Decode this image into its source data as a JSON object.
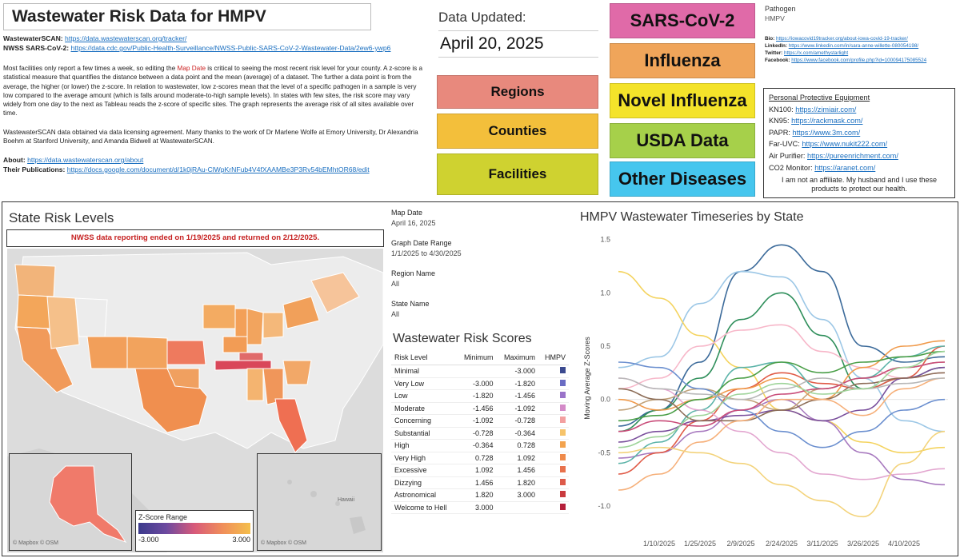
{
  "header": {
    "title": "Wastewater Risk Data for  HMPV",
    "links": [
      {
        "label": "WastewaterSCAN:",
        "url": "https://data.wastewaterscan.org/tracker/"
      },
      {
        "label": "NWSS SARS-CoV-2:",
        "url": "https://data.cdc.gov/Public-Health-Surveillance/NWSS-Public-SARS-CoV-2-Wastewater-Data/2ew6-ywp6"
      }
    ],
    "para1_a": "Most facilities only report a few times a week, so editing the ",
    "para1_highlight": "Map Date",
    "para1_b": " is critical to seeing the most recent risk level for your county. A z-score is a statistical measure that quantifies the distance between a data point and the mean (average) of a dataset. The further a data point is from the average, the higher (or lower) the z-score. In relation to wastewater, low z-scores mean that the level of a specific pathogen in a sample is very low compared to the average amount (which is falls around moderate-to-high sample levels). In states with few sites, the risk score may vary widely from one day to the next as Tableau reads the z-score of specific sites. The graph represents the average risk of all sites available over time.",
    "para2": "WastewaterSCAN data obtained via data licensing agreement. Many thanks to the work of Dr Marlene Wolfe at Emory University, Dr Alexandria Boehm at Stanford University, and Amanda Bidwell at WastewaterSCAN.",
    "about_label": "About:",
    "about_url": "https://data.wastewaterscan.org/about",
    "pubs_label": "Their Publications:",
    "pubs_url": "https://docs.google.com/document/d/1k0jRAu-ClWpKrNFub4V4fXAAMBe3P3Rv54bEMhtOR68/edit"
  },
  "updated": {
    "label": "Data Updated:",
    "date": "April 20, 2025"
  },
  "nav_left": [
    {
      "label": "Regions",
      "color": "#e8897d"
    },
    {
      "label": "Counties",
      "color": "#f3bf3b"
    },
    {
      "label": "Facilities",
      "color": "#cfd230"
    }
  ],
  "nav_right": [
    {
      "label": "SARS-CoV-2",
      "color": "#e06aa8"
    },
    {
      "label": "Influenza",
      "color": "#f0a55a"
    },
    {
      "label": "Novel Influenza",
      "color": "#f4e32a"
    },
    {
      "label": "USDA Data",
      "color": "#a6d04a"
    },
    {
      "label": "Other Diseases",
      "color": "#46c6ee"
    }
  ],
  "pathogen": {
    "label": "Pathogen",
    "value": "HMPV"
  },
  "social": [
    {
      "label": "Bio:",
      "url": "https://iowacovid19tracker.org/about-iowa-covid-19-tracker/"
    },
    {
      "label": "LinkedIn:",
      "url": "https://www.linkedin.com/in/sara-anne-willette-080054198/"
    },
    {
      "label": "Twitter:",
      "url": "https://x.com/amethystarlight"
    },
    {
      "label": "Facebook:",
      "url": "https://www.facebook.com/profile.php?id=100094175085524"
    }
  ],
  "ppe": {
    "title": "Personal Protective Equipment",
    "items": [
      {
        "label": "KN100:",
        "url": "https://zimiair.com/"
      },
      {
        "label": "KN95:",
        "url": "https://rackmask.com/"
      },
      {
        "label": "PAPR:",
        "url": "https://www.3m.com/"
      },
      {
        "label": "Far-UVC:",
        "url": "https://www.nukit222.com/"
      },
      {
        "label": "Air Purifier:",
        "url": "https://pureenrichment.com/"
      },
      {
        "label": "CO2 Monitor:",
        "url": "https://aranet.com/"
      }
    ],
    "note": "I am not an affiliate. My husband and I use these products to protect our health."
  },
  "map": {
    "title": "State Risk Levels",
    "note": "NWSS data reporting ended on 1/19/2025 and returned on 2/12/2025.",
    "attribution": "© Mapbox © OSM",
    "hawaii": "Hawaii",
    "legend_title": "Z-Score Range",
    "legend_min": "-3.000",
    "legend_max": "3.000"
  },
  "filters": [
    {
      "label": "Map Date",
      "value": "April 16, 2025"
    },
    {
      "label": "Graph Date Range",
      "value": "1/1/2025 to 4/30/2025"
    },
    {
      "label": "Region Name",
      "value": "All"
    },
    {
      "label": "State Name",
      "value": "All"
    }
  ],
  "risk": {
    "title": "Wastewater Risk Scores",
    "headers": [
      "Risk Level",
      "Minimum",
      "Maximum",
      "HMPV"
    ],
    "rows": [
      {
        "level": "Minimal",
        "min": "",
        "max": "-3.000",
        "color": "#3b4a8f"
      },
      {
        "level": "Very Low",
        "min": "-3.000",
        "max": "-1.820",
        "color": "#6a6cc3"
      },
      {
        "level": "Low",
        "min": "-1.820",
        "max": "-1.456",
        "color": "#9a73c9"
      },
      {
        "level": "Moderate",
        "min": "-1.456",
        "max": "-1.092",
        "color": "#d48ac8"
      },
      {
        "level": "Concerning",
        "min": "-1.092",
        "max": "-0.728",
        "color": "#f3a0a0"
      },
      {
        "level": "Substantial",
        "min": "-0.728",
        "max": "-0.364",
        "color": "#f6c36a"
      },
      {
        "level": "High",
        "min": "-0.364",
        "max": "0.728",
        "color": "#f3a34e"
      },
      {
        "level": "Very High",
        "min": "0.728",
        "max": "1.092",
        "color": "#ef8a4a"
      },
      {
        "level": "Excessive",
        "min": "1.092",
        "max": "1.456",
        "color": "#e8714c"
      },
      {
        "level": "Dizzying",
        "min": "1.456",
        "max": "1.820",
        "color": "#dd5a4a"
      },
      {
        "level": "Astronomical",
        "min": "1.820",
        "max": "3.000",
        "color": "#c93a3e"
      },
      {
        "level": "Welcome to Hell",
        "min": "3.000",
        "max": "",
        "color": "#b51f3a"
      }
    ]
  },
  "chart_data": {
    "type": "line",
    "title": "HMPV Wastewater Timeseries by State",
    "ylabel": "Moving Average Z-Scores",
    "xlabel": "",
    "ylim": [
      -1.15,
      1.55
    ],
    "yticks": [
      "1.5",
      "1.0",
      "0.5",
      "0.0",
      "-0.5",
      "-1.0"
    ],
    "xticks": [
      "1/10/2025",
      "1/25/2025",
      "2/9/2025",
      "2/24/2025",
      "3/11/2025",
      "3/26/2025",
      "4/10/2025"
    ],
    "grid": false,
    "legend": "none",
    "x": [
      "1/1/2025",
      "1/10/2025",
      "1/25/2025",
      "2/9/2025",
      "2/24/2025",
      "3/11/2025",
      "3/26/2025",
      "4/10/2025",
      "4/20/2025"
    ],
    "series": [
      {
        "color": "#3b6a9a",
        "values": [
          -0.25,
          -0.1,
          0.35,
          1.2,
          1.45,
          1.2,
          0.5,
          0.35,
          0.4
        ]
      },
      {
        "color": "#9cc7e6",
        "values": [
          0.3,
          0.4,
          0.9,
          1.2,
          1.15,
          0.75,
          0.2,
          -0.2,
          -0.3
        ]
      },
      {
        "color": "#f4d35e",
        "values": [
          1.2,
          0.95,
          0.6,
          0.3,
          -0.1,
          -0.2,
          -0.4,
          -0.5,
          -0.45
        ]
      },
      {
        "color": "#2f8f5b",
        "values": [
          -0.3,
          -0.1,
          0.2,
          0.75,
          1.0,
          0.6,
          0.1,
          0.2,
          0.3
        ]
      },
      {
        "color": "#f7b7c9",
        "values": [
          0.1,
          0.2,
          0.5,
          0.65,
          0.7,
          0.45,
          0.3,
          0.2,
          0.25
        ]
      },
      {
        "color": "#a87abf",
        "values": [
          -0.55,
          -0.5,
          -0.3,
          -0.1,
          0.0,
          -0.2,
          -0.5,
          -0.75,
          -0.8
        ]
      },
      {
        "color": "#e05b47",
        "values": [
          -0.7,
          -0.5,
          -0.2,
          0.1,
          0.25,
          0.15,
          0.1,
          0.2,
          0.5
        ]
      },
      {
        "color": "#5bb3a8",
        "values": [
          -0.6,
          -0.4,
          -0.1,
          0.3,
          0.35,
          0.1,
          0.2,
          0.4,
          0.5
        ]
      },
      {
        "color": "#f09a4b",
        "values": [
          0.0,
          -0.1,
          0.0,
          0.1,
          0.2,
          0.0,
          0.3,
          0.5,
          0.55
        ]
      },
      {
        "color": "#7a4f9c",
        "values": [
          -0.4,
          -0.3,
          -0.2,
          -0.15,
          -0.1,
          -0.2,
          -0.1,
          0.2,
          0.3
        ]
      },
      {
        "color": "#c2a37a",
        "values": [
          -0.1,
          0.0,
          0.1,
          0.0,
          -0.1,
          0.1,
          0.2,
          0.3,
          0.35
        ]
      },
      {
        "color": "#e3a7d0",
        "values": [
          0.2,
          0.1,
          -0.1,
          -0.3,
          -0.5,
          -0.7,
          -0.75,
          -0.7,
          -0.65
        ]
      },
      {
        "color": "#4a9e47",
        "values": [
          -0.2,
          -0.15,
          0.0,
          0.2,
          0.35,
          0.25,
          0.35,
          0.4,
          0.45
        ]
      },
      {
        "color": "#8d6e58",
        "values": [
          0.1,
          0.0,
          -0.2,
          -0.2,
          -0.1,
          0.0,
          0.15,
          0.2,
          0.25
        ]
      },
      {
        "color": "#f6b07a",
        "values": [
          -0.85,
          -0.7,
          -0.4,
          -0.2,
          0.0,
          0.0,
          -0.15,
          0.1,
          0.2
        ]
      },
      {
        "color": "#6b8fcf",
        "values": [
          0.35,
          0.3,
          0.1,
          -0.1,
          -0.3,
          -0.45,
          -0.3,
          -0.1,
          0.0
        ]
      },
      {
        "color": "#c94d7a",
        "values": [
          -0.3,
          -0.2,
          -0.25,
          -0.1,
          0.05,
          0.1,
          0.2,
          0.3,
          0.35
        ]
      },
      {
        "color": "#b8b8b8",
        "values": [
          0.2,
          0.1,
          0.05,
          0.0,
          0.1,
          0.2,
          0.1,
          0.15,
          0.2
        ]
      },
      {
        "color": "#f3d37b",
        "values": [
          -0.5,
          -0.45,
          -0.5,
          -0.6,
          -0.8,
          -0.95,
          -1.1,
          -0.6,
          -0.3
        ]
      },
      {
        "color": "#9fd49a",
        "values": [
          -0.45,
          -0.35,
          -0.15,
          0.05,
          0.15,
          0.05,
          0.1,
          0.3,
          0.45
        ]
      }
    ]
  }
}
